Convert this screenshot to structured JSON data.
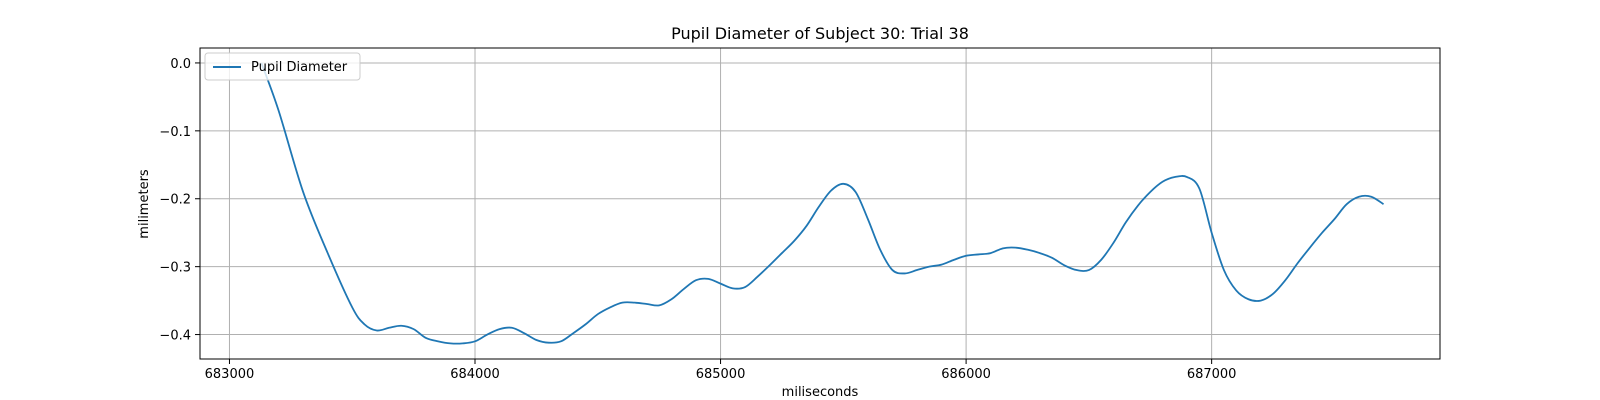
{
  "chart_data": {
    "type": "line",
    "title": "Pupil Diameter of Subject 30: Trial 38",
    "xlabel": "miliseconds",
    "ylabel": "milimeters",
    "xlim": [
      682880,
      687930
    ],
    "ylim": [
      -0.436,
      0.022
    ],
    "xticks": [
      683000,
      684000,
      685000,
      686000,
      687000
    ],
    "xtick_labels": [
      "683000",
      "684000",
      "685000",
      "686000",
      "687000"
    ],
    "yticks": [
      0.0,
      -0.1,
      -0.2,
      -0.3,
      -0.4
    ],
    "ytick_labels": [
      "0.0",
      "−0.1",
      "−0.2",
      "−0.3",
      "−0.4"
    ],
    "grid": true,
    "legend_position": "upper left",
    "series": [
      {
        "name": "Pupil Diameter",
        "color": "#1f77b4",
        "x": [
          683130,
          683200,
          683300,
          683400,
          683500,
          683550,
          683600,
          683650,
          683700,
          683750,
          683800,
          683850,
          683900,
          683950,
          684000,
          684050,
          684100,
          684150,
          684200,
          684250,
          684300,
          684350,
          684400,
          684450,
          684500,
          684550,
          684600,
          684650,
          684700,
          684750,
          684800,
          684850,
          684900,
          684950,
          685000,
          685050,
          685100,
          685150,
          685200,
          685250,
          685300,
          685350,
          685400,
          685450,
          685500,
          685550,
          685600,
          685650,
          685700,
          685750,
          685800,
          685850,
          685900,
          685950,
          686000,
          686050,
          686100,
          686150,
          686200,
          686250,
          686300,
          686350,
          686400,
          686450,
          686500,
          686550,
          686600,
          686650,
          686700,
          686750,
          686800,
          686850,
          686900,
          686950,
          687000,
          687050,
          687100,
          687150,
          687200,
          687250,
          687300,
          687350,
          687400,
          687450,
          687500,
          687550,
          687600,
          687650,
          687700
        ],
        "y": [
          0.0,
          -0.07,
          -0.19,
          -0.28,
          -0.36,
          -0.385,
          -0.394,
          -0.39,
          -0.387,
          -0.392,
          -0.405,
          -0.41,
          -0.413,
          -0.413,
          -0.41,
          -0.4,
          -0.392,
          -0.39,
          -0.398,
          -0.408,
          -0.412,
          -0.41,
          -0.398,
          -0.385,
          -0.37,
          -0.36,
          -0.353,
          -0.353,
          -0.355,
          -0.357,
          -0.348,
          -0.333,
          -0.32,
          -0.318,
          -0.325,
          -0.332,
          -0.33,
          -0.315,
          -0.298,
          -0.28,
          -0.262,
          -0.24,
          -0.212,
          -0.188,
          -0.178,
          -0.19,
          -0.23,
          -0.275,
          -0.305,
          -0.31,
          -0.305,
          -0.3,
          -0.297,
          -0.29,
          -0.284,
          -0.282,
          -0.28,
          -0.273,
          -0.272,
          -0.275,
          -0.28,
          -0.287,
          -0.298,
          -0.305,
          -0.305,
          -0.29,
          -0.265,
          -0.235,
          -0.21,
          -0.19,
          -0.175,
          -0.168,
          -0.168,
          -0.185,
          -0.25,
          -0.305,
          -0.335,
          -0.348,
          -0.35,
          -0.34,
          -0.32,
          -0.295,
          -0.272,
          -0.25,
          -0.23,
          -0.208,
          -0.197,
          -0.197,
          -0.208
        ]
      }
    ]
  }
}
